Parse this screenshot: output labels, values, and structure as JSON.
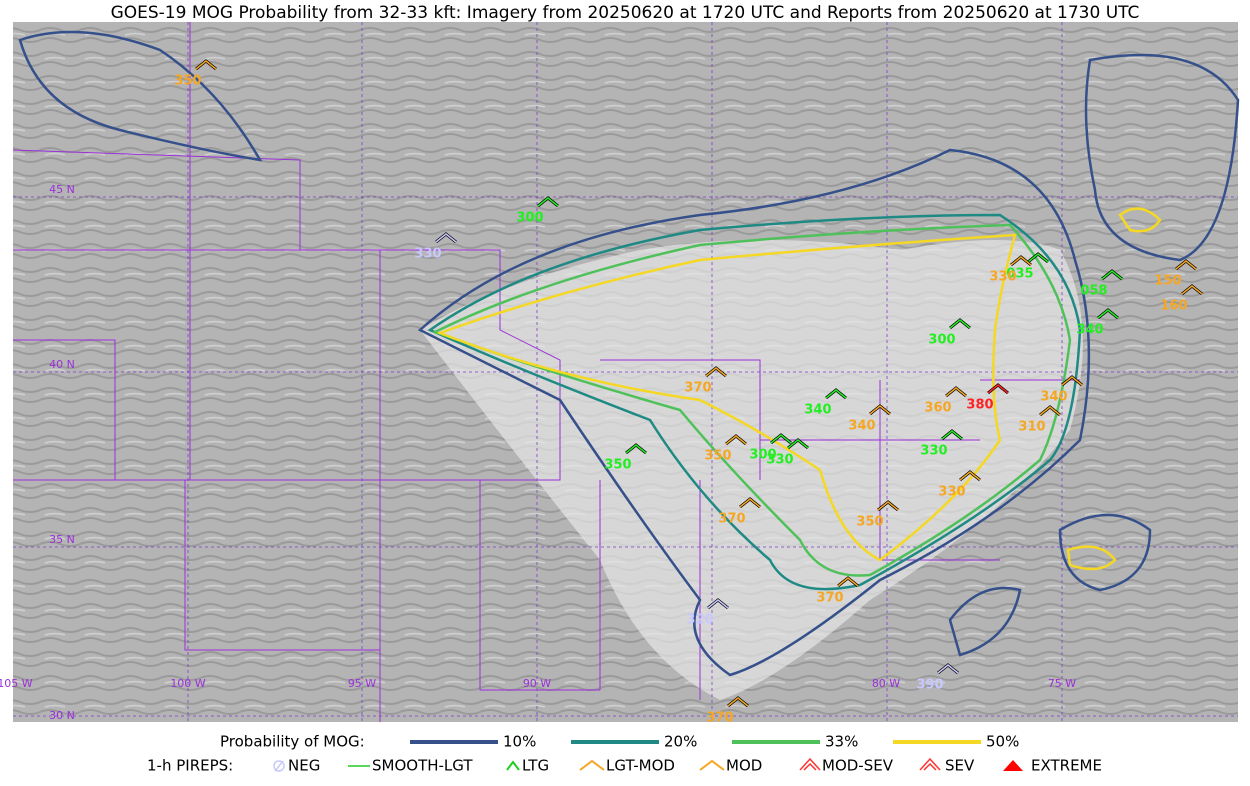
{
  "title": "GOES-19 MOG Probability from 32-33 kft: Imagery from 20250620 at 1720 UTC and Reports from 20250620 at 1730 UTC",
  "grid_labels": [
    "45 N",
    "40 N",
    "35 N",
    "30 N",
    "105 W",
    "100 W",
    "95 W",
    "90 W",
    "80 W",
    "75 W"
  ],
  "legend": {
    "probability_label": "Probability of MOG:",
    "levels": [
      {
        "label": "10%",
        "color": "#35508a"
      },
      {
        "label": "20%",
        "color": "#1f8a84"
      },
      {
        "label": "33%",
        "color": "#4fc15a"
      },
      {
        "label": "50%",
        "color": "#f5d824"
      }
    ],
    "pireps_label": "1-h PIREPS:",
    "pireps": [
      "NEG",
      "SMOOTH-LGT",
      "LTG",
      "LGT-MOD",
      "MOD",
      "MOD-SEV",
      "SEV",
      "EXTREME"
    ]
  },
  "reports": [
    {
      "label": "350",
      "color": "#f5a623"
    },
    {
      "label": "300",
      "color": "#22ee22"
    },
    {
      "label": "330",
      "color": "#c8c8ff"
    },
    {
      "label": "300",
      "color": "#22ee22"
    },
    {
      "label": "340",
      "color": "#22ee22"
    },
    {
      "label": "058",
      "color": "#22ee22"
    },
    {
      "label": "150",
      "color": "#f5a623"
    },
    {
      "label": "160",
      "color": "#f5a623"
    },
    {
      "label": "035",
      "color": "#22ee22"
    },
    {
      "label": "330",
      "color": "#f5a623"
    },
    {
      "label": "370",
      "color": "#f5a623"
    },
    {
      "label": "340",
      "color": "#22ee22"
    },
    {
      "label": "340",
      "color": "#f5a623"
    },
    {
      "label": "360",
      "color": "#f5a623"
    },
    {
      "label": "340",
      "color": "#f5a623"
    },
    {
      "label": "310",
      "color": "#f5a623"
    },
    {
      "label": "330",
      "color": "#22ee22"
    },
    {
      "label": "350",
      "color": "#22ee22"
    },
    {
      "label": "350",
      "color": "#f5a623"
    },
    {
      "label": "300",
      "color": "#22ee22"
    },
    {
      "label": "330",
      "color": "#22ee22"
    },
    {
      "label": "330",
      "color": "#f5a623"
    },
    {
      "label": "370",
      "color": "#f5a623"
    },
    {
      "label": "350",
      "color": "#f5a623"
    },
    {
      "label": "370",
      "color": "#f5a623"
    },
    {
      "label": "320",
      "color": "#c8c8ff"
    },
    {
      "label": "390",
      "color": "#c8c8ff"
    },
    {
      "label": "370",
      "color": "#f5a623"
    },
    {
      "label": "380",
      "color": "#ff2222"
    }
  ]
}
